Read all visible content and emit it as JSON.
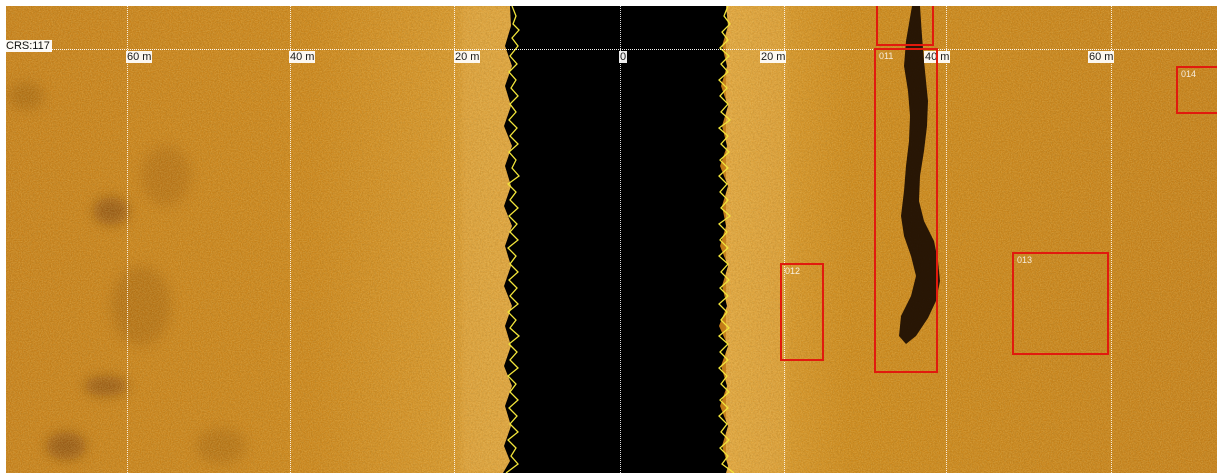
{
  "viewer": {
    "course_label": "CRS:117",
    "range_labels_port": [
      "60 m",
      "40 m",
      "20 m"
    ],
    "center_label": "0",
    "range_labels_starboard": [
      "20 m",
      "40 m",
      "60 m"
    ]
  },
  "targets": [
    {
      "id": "011"
    },
    {
      "id": "012"
    },
    {
      "id": "013"
    },
    {
      "id": "014"
    }
  ],
  "colors": {
    "seabed": "#c07a17",
    "water_column": "#000000",
    "bottom_trace": "#f2e53a",
    "target_box": "#e11a0e",
    "grid": "#ffffff"
  }
}
